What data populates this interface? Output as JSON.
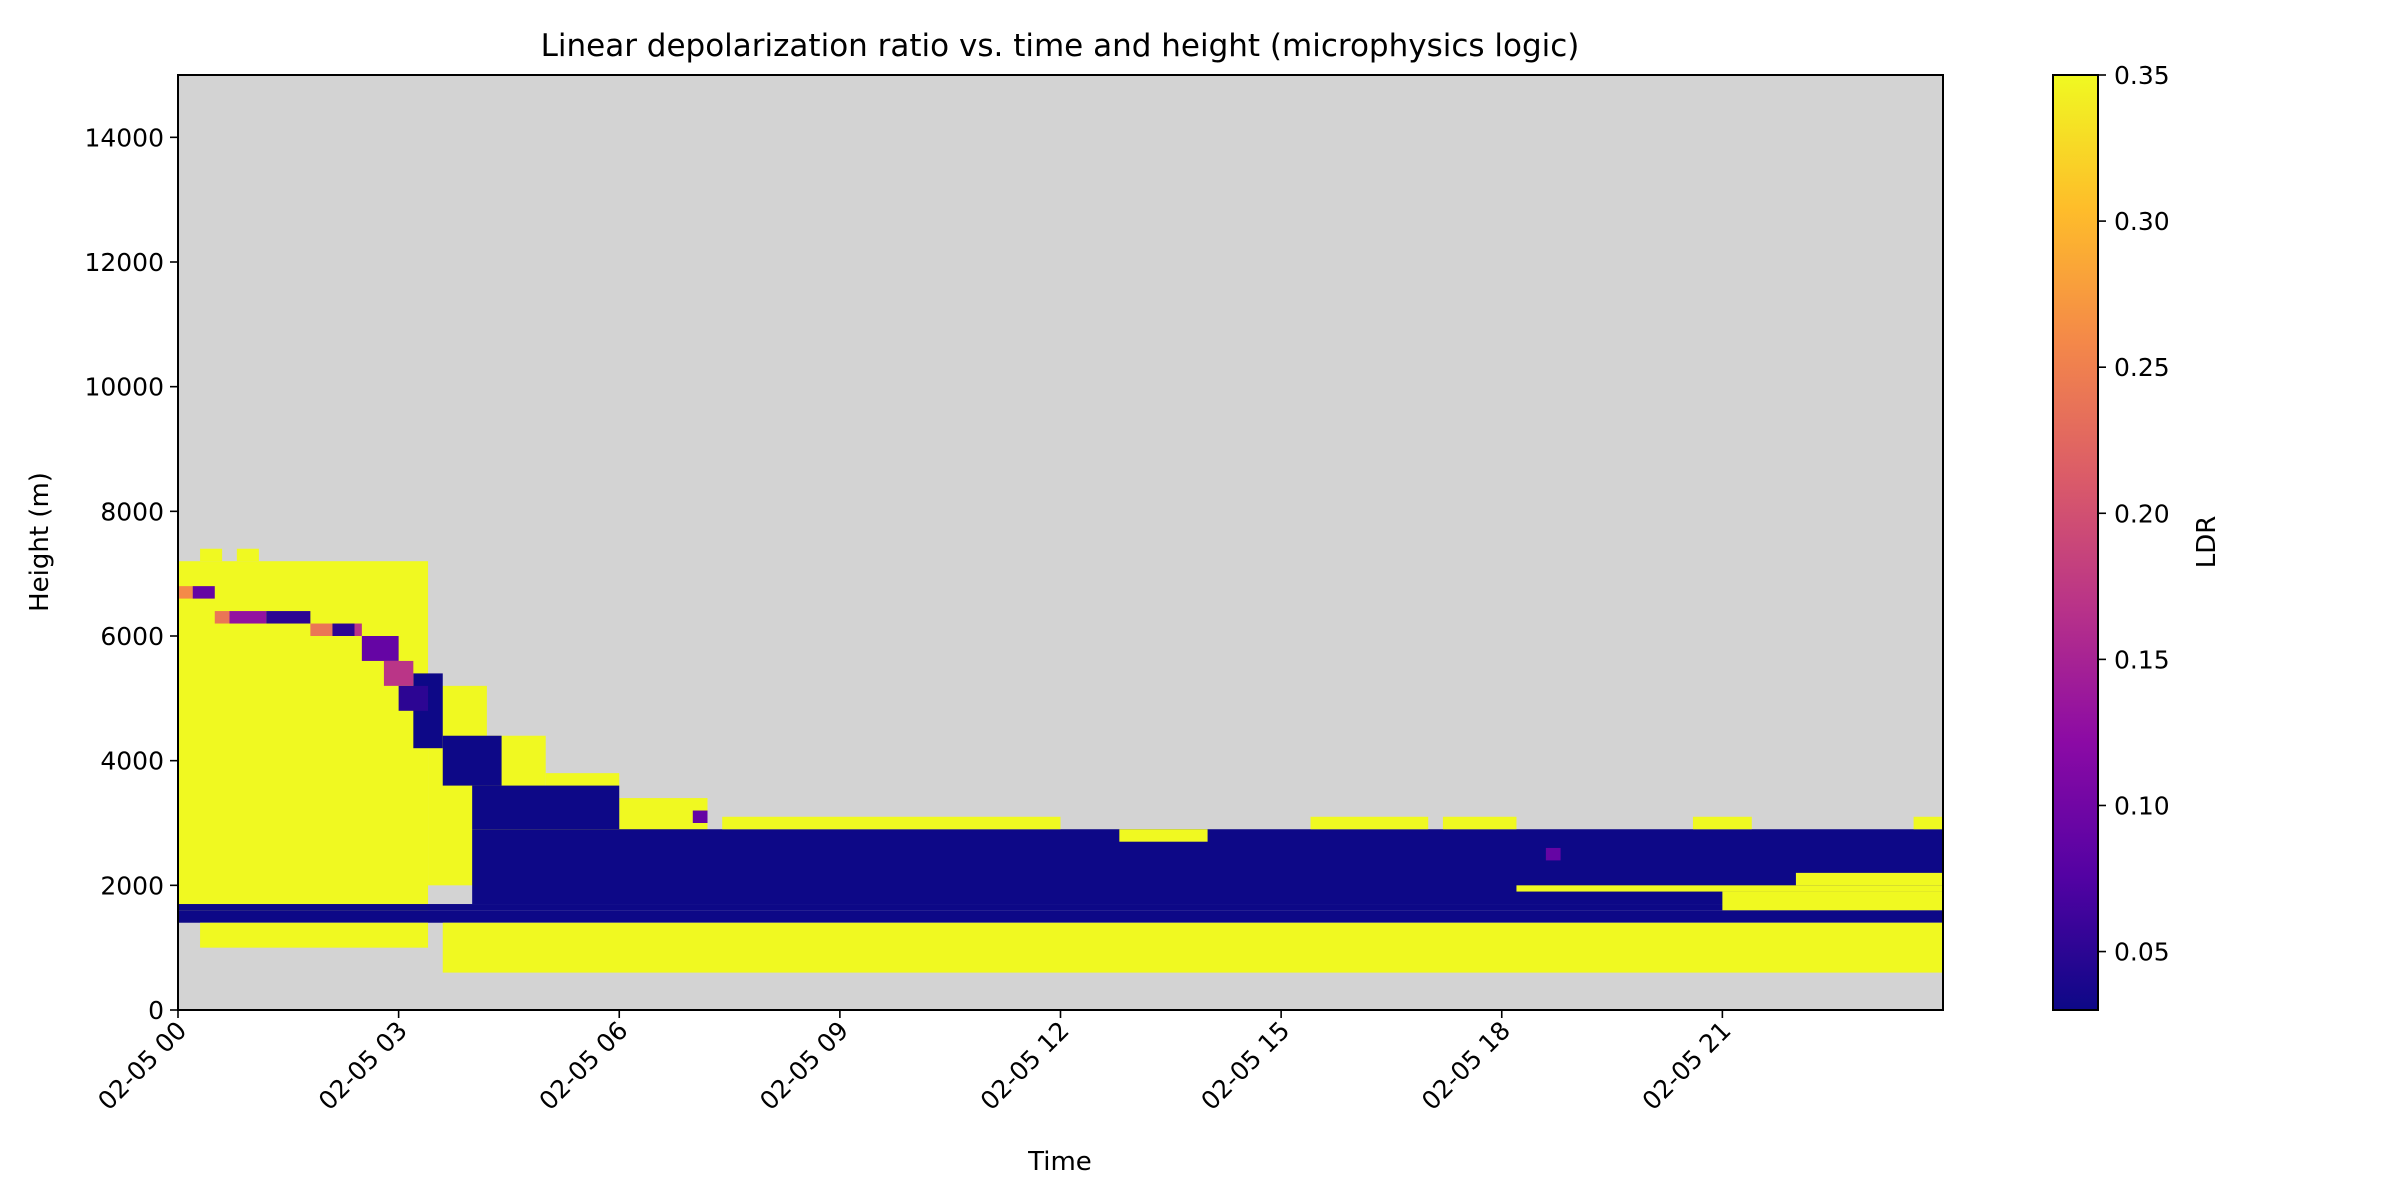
{
  "chart_data": {
    "type": "heatmap",
    "title": "Linear depolarization ratio vs. time and height (microphysics logic)",
    "xlabel": "Time",
    "ylabel": "Height (m)",
    "x_ticks": [
      "02-05 00",
      "02-05 03",
      "02-05 06",
      "02-05 09",
      "02-05 12",
      "02-05 15",
      "02-05 18",
      "02-05 21"
    ],
    "x_tick_hours": [
      0,
      3,
      6,
      9,
      12,
      15,
      18,
      21
    ],
    "x_range_hours": [
      0,
      24
    ],
    "y_ticks": [
      0,
      2000,
      4000,
      6000,
      8000,
      10000,
      12000,
      14000
    ],
    "y_tick_labels": [
      "0",
      "2000",
      "4000",
      "6000",
      "8000",
      "10000",
      "12000",
      "14000"
    ],
    "ylim": [
      0,
      15000
    ],
    "grid": false,
    "colorbar": {
      "label": "LDR",
      "colormap": "plasma",
      "range": [
        0.03,
        0.35
      ],
      "ticks": [
        0.05,
        0.1,
        0.15,
        0.2,
        0.25,
        0.3,
        0.35
      ],
      "tick_labels": [
        "0.05",
        "0.10",
        "0.15",
        "0.20",
        "0.25",
        "0.30",
        "0.35"
      ],
      "stops": [
        "#0d0887",
        "#5302a3",
        "#8b0aa5",
        "#b83289",
        "#db5c68",
        "#f48849",
        "#febd2a",
        "#f0f921"
      ]
    },
    "background_color": "#d3d3d3",
    "cell_width_hours": 0.2,
    "cell_height_m": 200,
    "regions": [
      {
        "t": [
          0.0,
          3.4
        ],
        "h": [
          1600,
          7200
        ],
        "ldr": 0.35
      },
      {
        "t": [
          0.3,
          0.6
        ],
        "h": [
          7200,
          7400
        ],
        "ldr": 0.35
      },
      {
        "t": [
          0.8,
          1.1
        ],
        "h": [
          7200,
          7400
        ],
        "ldr": 0.35
      },
      {
        "t": [
          3.4,
          4.2
        ],
        "h": [
          2000,
          5200
        ],
        "ldr": 0.35
      },
      {
        "t": [
          4.2,
          5.0
        ],
        "h": [
          2000,
          4400
        ],
        "ldr": 0.35
      },
      {
        "t": [
          5.0,
          6.0
        ],
        "h": [
          2200,
          3800
        ],
        "ldr": 0.35
      },
      {
        "t": [
          6.0,
          7.2
        ],
        "h": [
          2000,
          3400
        ],
        "ldr": 0.35
      },
      {
        "t": [
          0.0,
          24.0
        ],
        "h": [
          1400,
          1600
        ],
        "ldr": 0.03
      },
      {
        "t": [
          0.0,
          24.0
        ],
        "h": [
          1600,
          1700
        ],
        "ldr": 0.03
      },
      {
        "t": [
          4.0,
          24.0
        ],
        "h": [
          1700,
          2900
        ],
        "ldr": 0.03
      },
      {
        "t": [
          4.0,
          6.0
        ],
        "h": [
          2900,
          3600
        ],
        "ldr": 0.03
      },
      {
        "t": [
          3.6,
          4.4
        ],
        "h": [
          3600,
          4400
        ],
        "ldr": 0.03
      },
      {
        "t": [
          3.2,
          3.6
        ],
        "h": [
          4200,
          5400
        ],
        "ldr": 0.03
      },
      {
        "t": [
          3.6,
          24.0
        ],
        "h": [
          600,
          1400
        ],
        "ldr": 0.35
      },
      {
        "t": [
          0.3,
          3.4
        ],
        "h": [
          1000,
          1400
        ],
        "ldr": 0.35
      },
      {
        "t": [
          18.2,
          24.0
        ],
        "h": [
          1900,
          2000
        ],
        "ldr": 0.35
      },
      {
        "t": [
          21.0,
          24.0
        ],
        "h": [
          1600,
          1900
        ],
        "ldr": 0.35
      },
      {
        "t": [
          22.0,
          24.0
        ],
        "h": [
          2000,
          2200
        ],
        "ldr": 0.35
      },
      {
        "t": [
          7.4,
          12.0
        ],
        "h": [
          2900,
          3100
        ],
        "ldr": 0.35
      },
      {
        "t": [
          12.8,
          14.0
        ],
        "h": [
          2700,
          2900
        ],
        "ldr": 0.35
      },
      {
        "t": [
          15.4,
          17.0
        ],
        "h": [
          2900,
          3100
        ],
        "ldr": 0.35
      },
      {
        "t": [
          17.2,
          18.2
        ],
        "h": [
          2900,
          3100
        ],
        "ldr": 0.35
      },
      {
        "t": [
          20.6,
          21.4
        ],
        "h": [
          2900,
          3100
        ],
        "ldr": 0.35
      },
      {
        "t": [
          23.6,
          24.0
        ],
        "h": [
          2900,
          3100
        ],
        "ldr": 0.35
      },
      {
        "t": [
          0.0,
          0.2
        ],
        "h": [
          6600,
          6800
        ],
        "ldr": 0.26
      },
      {
        "t": [
          0.2,
          0.5
        ],
        "h": [
          6600,
          6800
        ],
        "ldr": 0.09
      },
      {
        "t": [
          0.5,
          0.7
        ],
        "h": [
          6200,
          6400
        ],
        "ldr": 0.24
      },
      {
        "t": [
          0.7,
          1.2
        ],
        "h": [
          6200,
          6400
        ],
        "ldr": 0.13
      },
      {
        "t": [
          1.2,
          1.8
        ],
        "h": [
          6200,
          6400
        ],
        "ldr": 0.05
      },
      {
        "t": [
          1.8,
          2.1
        ],
        "h": [
          6000,
          6200
        ],
        "ldr": 0.24
      },
      {
        "t": [
          2.1,
          2.4
        ],
        "h": [
          6000,
          6200
        ],
        "ldr": 0.05
      },
      {
        "t": [
          2.4,
          2.5
        ],
        "h": [
          6000,
          6200
        ],
        "ldr": 0.17
      },
      {
        "t": [
          2.5,
          3.0
        ],
        "h": [
          5600,
          6000
        ],
        "ldr": 0.09
      },
      {
        "t": [
          2.8,
          3.2
        ],
        "h": [
          5200,
          5600
        ],
        "ldr": 0.17
      },
      {
        "t": [
          3.0,
          3.4
        ],
        "h": [
          4800,
          5200
        ],
        "ldr": 0.05
      },
      {
        "t": [
          18.6,
          18.8
        ],
        "h": [
          2400,
          2600
        ],
        "ldr": 0.09
      },
      {
        "t": [
          7.0,
          7.2
        ],
        "h": [
          3000,
          3200
        ],
        "ldr": 0.09
      }
    ]
  }
}
